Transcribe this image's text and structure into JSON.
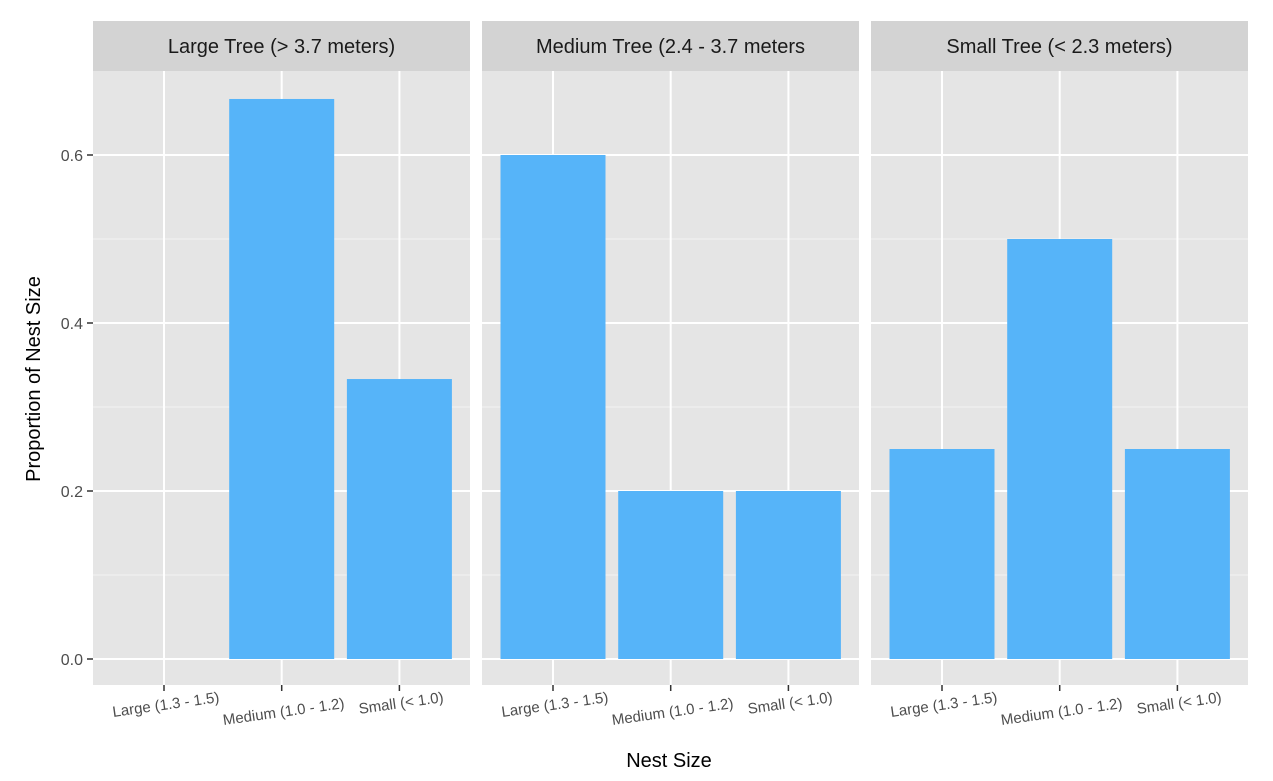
{
  "chart_data": {
    "type": "bar",
    "xlabel": "Nest Size",
    "ylabel": "Proportion of Nest Size",
    "ylim": [
      0,
      0.7
    ],
    "yticks": [
      0.0,
      0.2,
      0.4,
      0.6
    ],
    "ytick_labels": [
      "0.0",
      "0.2",
      "0.4",
      "0.6"
    ],
    "categories": [
      "Large (1.3 - 1.5)",
      "Medium (1.0 - 1.2)",
      "Small (< 1.0)"
    ],
    "grid": true,
    "bar_color": "#56B4F9",
    "panel_background": "#E5E5E5",
    "strip_background": "#D3D3D3",
    "facets": [
      {
        "title": "Large Tree (> 3.7 meters)",
        "values": [
          0,
          0.6667,
          0.3333
        ]
      },
      {
        "title": "Medium Tree (2.4 - 3.7 meters",
        "values": [
          0.6,
          0.2,
          0.2
        ]
      },
      {
        "title": "Small Tree (< 2.3 meters)",
        "values": [
          0.25,
          0.5,
          0.25
        ]
      }
    ]
  }
}
